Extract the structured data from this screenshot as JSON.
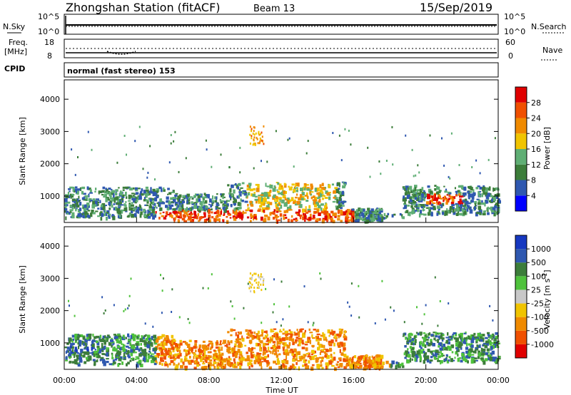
{
  "header": {
    "station": "Zhongshan Station (fitACF)",
    "beam": "Beam 13",
    "date": "15/Sep/2019"
  },
  "top_panel": {
    "left_label": "N.Sky",
    "right_label": "N.Search",
    "left_ticks": [
      "10^5",
      "10^0"
    ],
    "right_ticks": [
      "10^5",
      "10^0"
    ]
  },
  "freq_panel": {
    "left_label_1": "Freq.",
    "left_label_2": "[MHz]",
    "right_label": "Nave",
    "left_ticks": [
      "18",
      "8"
    ],
    "right_ticks": [
      "60",
      "0"
    ],
    "cpid_label": "CPID",
    "mode_text": "normal (fast stereo) 153"
  },
  "colors": {
    "power": [
      "#0000ff",
      "#2f58b0",
      "#3c7d3a",
      "#5fae74",
      "#f0c400",
      "#f08a00",
      "#f05000",
      "#e00000"
    ],
    "velocity": [
      "#e00000",
      "#f05000",
      "#f08a00",
      "#f0c400",
      "#c8c8c8",
      "#4fc23c",
      "#3c7d3a",
      "#2f58b0",
      "#1638c0"
    ]
  },
  "chart_data": [
    {
      "type": "heatmap",
      "title": "Power",
      "xlabel": "Time UT",
      "ylabel": "Slant Range [km]",
      "x_ticks": [
        "00:00",
        "04:00",
        "08:00",
        "12:00",
        "16:00",
        "20:00",
        "00:00"
      ],
      "y_ticks": [
        1000,
        2000,
        3000,
        4000
      ],
      "ylim": [
        180,
        4600
      ],
      "colorbar": {
        "label": "Power [dB]",
        "ticks": [
          "28",
          "24",
          "20",
          "16",
          "12",
          "8",
          "4"
        ]
      },
      "scatter_regions": [
        {
          "t": [
            0,
            6
          ],
          "r": [
            400,
            1300
          ],
          "level": "low"
        },
        {
          "t": [
            6,
            15.5
          ],
          "r": [
            250,
            700
          ],
          "level": "high"
        },
        {
          "t": [
            9,
            16
          ],
          "r": [
            700,
            1400
          ],
          "level": "mid"
        },
        {
          "t": [
            18.7,
            24
          ],
          "r": [
            500,
            1300
          ],
          "level": "mid"
        }
      ]
    },
    {
      "type": "heatmap",
      "title": "Velocity",
      "xlabel": "Time UT",
      "ylabel": "Slant Range [km]",
      "x_ticks": [
        "00:00",
        "04:00",
        "08:00",
        "12:00",
        "16:00",
        "20:00",
        "00:00"
      ],
      "y_ticks": [
        1000,
        2000,
        3000,
        4000
      ],
      "ylim": [
        180,
        4600
      ],
      "colorbar": {
        "label": "Velocity [m s-1]",
        "label_main": "Velocity [m s",
        "label_exp": "-1",
        "label_end": "]",
        "ticks": [
          "1000",
          "500",
          "100",
          "25",
          "-25",
          "-100",
          "-500",
          "-1000"
        ]
      }
    }
  ],
  "x_axis_label": "Time UT"
}
